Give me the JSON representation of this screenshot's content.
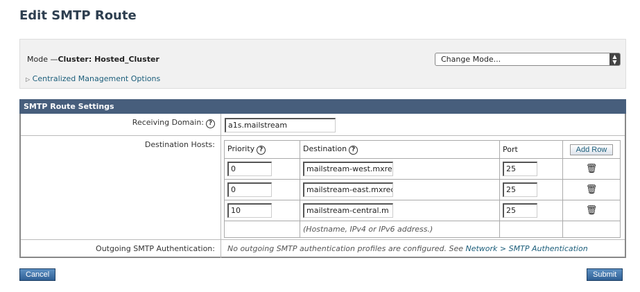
{
  "page_title": "Edit SMTP Route",
  "mode": {
    "label": "Mode —",
    "value": "Cluster: Hosted_Cluster",
    "change_mode": "Change Mode...",
    "cmo_link": "Centralized Management Options"
  },
  "settings": {
    "header": "SMTP Route Settings",
    "receiving_domain": {
      "label": "Receiving Domain:",
      "value": "a1s.mailstream"
    },
    "destination_hosts": {
      "label": "Destination Hosts:",
      "columns": {
        "priority": "Priority",
        "destination": "Destination",
        "port": "Port",
        "add_row": "Add Row"
      },
      "rows": [
        {
          "priority": "0",
          "destination": "mailstream-west.mxre",
          "port": "25"
        },
        {
          "priority": "0",
          "destination": "mailstream-east.mxrec",
          "port": "25"
        },
        {
          "priority": "10",
          "destination": "mailstream-central.m",
          "port": "25"
        }
      ],
      "hint": "(Hostname, IPv4 or IPv6 address.)"
    },
    "outgoing_auth": {
      "label": "Outgoing SMTP Authentication:",
      "text": "No outgoing SMTP authentication profiles are configured. See ",
      "link": "Network > SMTP Authentication"
    }
  },
  "buttons": {
    "cancel": "Cancel",
    "submit": "Submit"
  }
}
